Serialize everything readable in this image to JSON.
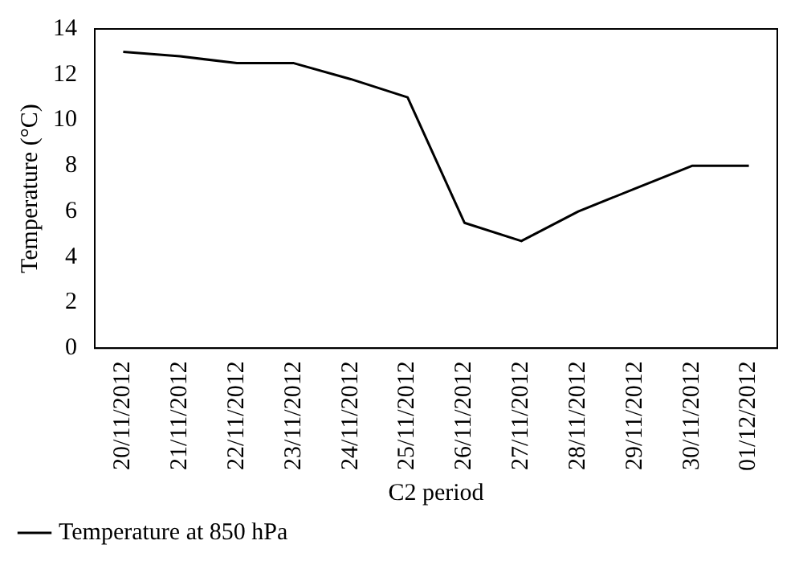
{
  "chart_data": {
    "type": "line",
    "xlabel": "C2 period",
    "ylabel": "Temperature (°C)",
    "categories": [
      "20/11/2012",
      "21/11/2012",
      "22/11/2012",
      "23/11/2012",
      "24/11/2012",
      "25/11/2012",
      "26/11/2012",
      "27/11/2012",
      "28/11/2012",
      "29/11/2012",
      "30/11/2012",
      "01/12/2012"
    ],
    "series": [
      {
        "name": "Temperature at 850 hPa",
        "color": "#000000",
        "values": [
          13,
          12.8,
          12.5,
          12.5,
          11.8,
          11,
          5.5,
          4.7,
          6,
          7,
          8,
          8
        ]
      }
    ],
    "ylim": [
      0,
      14
    ],
    "yticks": [
      0,
      2,
      4,
      6,
      8,
      10,
      12,
      14
    ],
    "grid": false,
    "legend": "bottom left",
    "marker": "none",
    "line_style": "solid"
  }
}
